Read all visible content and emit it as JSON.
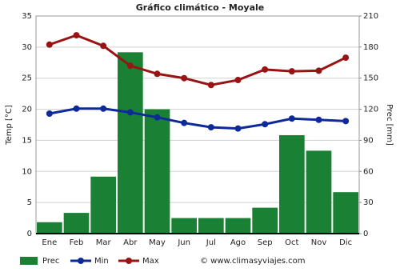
{
  "chart_data": {
    "type": "combo",
    "title": "Gráfico climático - Moyale",
    "y_label": "Temp [°C]",
    "y2_label": "Prec [mm]",
    "categories": [
      "Ene",
      "Feb",
      "Mar",
      "Abr",
      "May",
      "Jun",
      "Jul",
      "Ago",
      "Sep",
      "Oct",
      "Nov",
      "Dic"
    ],
    "series": [
      {
        "name": "Prec",
        "type": "bar",
        "axis": "y2",
        "color": "#1a8033",
        "values": [
          11,
          20,
          55,
          175,
          120,
          15,
          15,
          15,
          25,
          95,
          80,
          40
        ]
      },
      {
        "name": "Min",
        "type": "line",
        "axis": "y",
        "color": "#0e2a9a",
        "values": [
          19.3,
          20.1,
          20.1,
          19.5,
          18.7,
          17.8,
          17.1,
          16.9,
          17.6,
          18.5,
          18.3,
          18.1
        ]
      },
      {
        "name": "Max",
        "type": "line",
        "axis": "y",
        "color": "#9a1313",
        "values": [
          30.4,
          31.9,
          30.2,
          27.0,
          25.7,
          25.0,
          23.9,
          24.7,
          26.4,
          26.1,
          26.2,
          28.3
        ]
      }
    ],
    "ylim": [
      0,
      35
    ],
    "yticks": [
      0,
      5,
      10,
      15,
      20,
      25,
      30,
      35
    ],
    "y2lim": [
      0,
      210
    ],
    "y2ticks": [
      0,
      30,
      60,
      90,
      120,
      150,
      180,
      210
    ],
    "grid": true,
    "legend": "bottom",
    "source": "© www.climasyviajes.com"
  }
}
